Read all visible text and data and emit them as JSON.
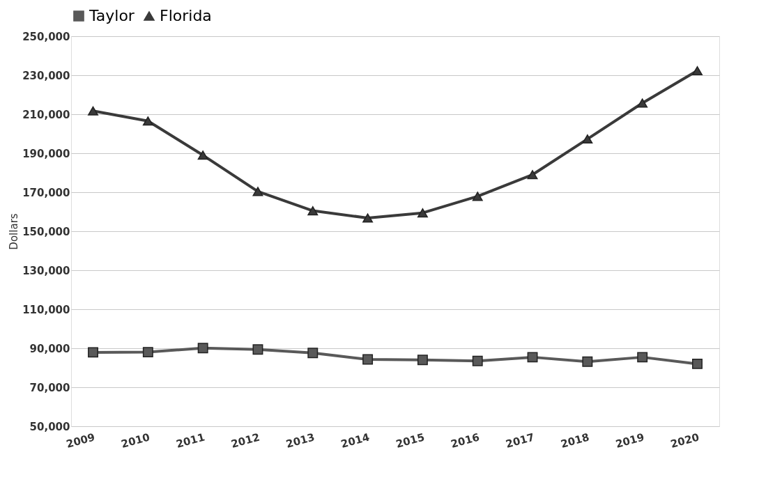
{
  "chart_data": {
    "type": "line",
    "ylabel": "Dollars",
    "categories": [
      "2009",
      "2010",
      "2011",
      "2012",
      "2013",
      "2014",
      "2015",
      "2016",
      "2017",
      "2018",
      "2019",
      "2020"
    ],
    "series": [
      {
        "name": "Taylor",
        "color": "#595959",
        "marker": "square",
        "values": [
          87900,
          88000,
          90100,
          89400,
          87600,
          84300,
          84000,
          83500,
          85400,
          83100,
          85400,
          82000
        ]
      },
      {
        "name": "Florida",
        "color": "#3a3a3a",
        "marker": "triangle",
        "values": [
          211700,
          206500,
          189000,
          170400,
          160500,
          156800,
          159400,
          167900,
          179000,
          197300,
          215700,
          232300
        ]
      }
    ],
    "ylim": [
      50000,
      250000
    ],
    "yticks": [
      {
        "value": 50000,
        "label": "50,000"
      },
      {
        "value": 70000,
        "label": "70,000"
      },
      {
        "value": 90000,
        "label": "90,000"
      },
      {
        "value": 110000,
        "label": "110,000"
      },
      {
        "value": 130000,
        "label": "130,000"
      },
      {
        "value": 150000,
        "label": "150,000"
      },
      {
        "value": 170000,
        "label": "170,000"
      },
      {
        "value": 190000,
        "label": "190,000"
      },
      {
        "value": 210000,
        "label": "210,000"
      },
      {
        "value": 230000,
        "label": "230,000"
      },
      {
        "value": 250000,
        "label": "250,000"
      }
    ],
    "grid": "y",
    "legend": "top"
  }
}
